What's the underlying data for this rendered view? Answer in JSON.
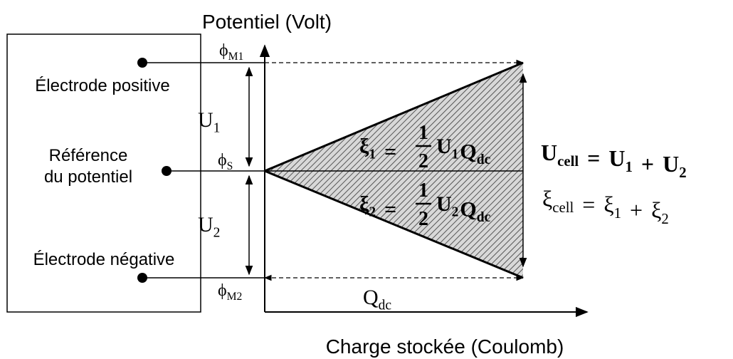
{
  "axes": {
    "y_label": "Potentiel (Volt)",
    "x_label": "Charge stockée (Coulomb)"
  },
  "electrodes": {
    "positive": "Électrode positive",
    "reference": [
      "Référence",
      "du potentiel"
    ],
    "negative": "Électrode négative"
  },
  "potentials": [
    {
      "symbol": "ϕ",
      "sub": "M1"
    },
    {
      "symbol": "ϕ",
      "sub": "S"
    },
    {
      "symbol": "ϕ",
      "sub": "M2"
    }
  ],
  "voltages": [
    {
      "symbol": "U",
      "sub": "1"
    },
    {
      "symbol": "U",
      "sub": "2"
    }
  ],
  "charge": {
    "symbol": "Q",
    "sub": "dc"
  },
  "energies": [
    {
      "lhs": {
        "symbol": "ξ",
        "sub": "1"
      },
      "eq": "=",
      "num": "1",
      "den": "2",
      "u": {
        "symbol": "U",
        "sub": "1"
      },
      "q": {
        "symbol": "Q",
        "sub": "dc"
      }
    },
    {
      "lhs": {
        "symbol": "ξ",
        "sub": "2"
      },
      "eq": "=",
      "num": "1",
      "den": "2",
      "u": {
        "symbol": "U",
        "sub": "2"
      },
      "q": {
        "symbol": "Q",
        "sub": "dc"
      }
    }
  ],
  "totals": [
    {
      "lhs": {
        "symbol": "U",
        "sub": "cell"
      },
      "eq": "=",
      "t1": {
        "symbol": "U",
        "sub": "1"
      },
      "plus": "+",
      "t2": {
        "symbol": "U",
        "sub": "2"
      }
    },
    {
      "lhs": {
        "symbol": "ξ",
        "sub": "cell"
      },
      "eq": "=",
      "t1": {
        "symbol": "ξ",
        "sub": "1"
      },
      "plus": "+",
      "t2": {
        "symbol": "ξ",
        "sub": "2"
      }
    }
  ]
}
